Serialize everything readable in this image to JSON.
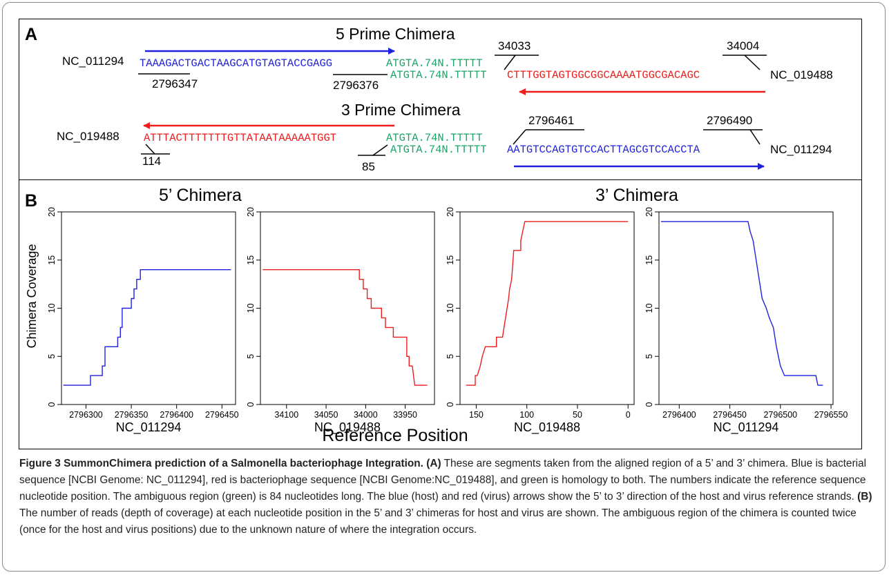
{
  "panel_a": {
    "letter": "A",
    "five_prime": {
      "title": "5 Prime Chimera",
      "host_label": "NC_011294",
      "host_seq": "TAAAGACTGACTAAGCATGTAGTACCGAGG",
      "homology_top": "ATGTA.74N.TTTTT",
      "homology_bottom": "ATGTA.74N.TTTTT",
      "virus_seq": "CTTTGGTAGTGGCGGCAAAATGGCGACAGC",
      "virus_label": "NC_019488",
      "pos_host_start": "2796347",
      "pos_host_end": "2796376",
      "pos_virus_start": "34033",
      "pos_virus_end": "34004"
    },
    "three_prime": {
      "title": "3 Prime Chimera",
      "virus_label": "NC_019488",
      "virus_seq": "ATTTACTTTTTTTGTTATAATAAAAATGGT",
      "homology_top": "ATGTA.74N.TTTTT",
      "homology_bottom": "ATGTA.74N.TTTTT",
      "host_seq": "AATGTCCAGTGTCCACTTAGCGTCCACCTA",
      "host_label": "NC_011294",
      "pos_virus_start": "114",
      "pos_virus_end": "85",
      "pos_host_start": "2796461",
      "pos_host_end": "2796490"
    }
  },
  "panel_b": {
    "letter": "B",
    "group_title_left": "5’ Chimera",
    "group_title_right": "3’ Chimera",
    "ylabel": "Chimera Coverage",
    "common_xlabel": "Reference Position"
  },
  "colors": {
    "host": "#1f1fe0",
    "virus": "#ee1c1c",
    "homology": "#1aa366"
  },
  "chart_data": [
    {
      "type": "line",
      "xlabel": "NC_011294",
      "ylabel": "Chimera Coverage",
      "xlim": [
        2796273,
        2796465
      ],
      "ylim": [
        0,
        20
      ],
      "xticks": [
        2796300,
        2796350,
        2796400,
        2796450
      ],
      "yticks": [
        0,
        5,
        10,
        15,
        20
      ],
      "series": [
        {
          "color": "#1f1fe0",
          "points": [
            [
              2796275,
              2
            ],
            [
              2796305,
              2
            ],
            [
              2796305,
              3
            ],
            [
              2796318,
              3
            ],
            [
              2796318,
              4
            ],
            [
              2796321,
              4
            ],
            [
              2796321,
              6
            ],
            [
              2796335,
              6
            ],
            [
              2796335,
              7
            ],
            [
              2796338,
              7
            ],
            [
              2796338,
              8
            ],
            [
              2796340,
              8
            ],
            [
              2796340,
              10
            ],
            [
              2796350,
              10
            ],
            [
              2796350,
              11
            ],
            [
              2796353,
              11
            ],
            [
              2796353,
              12
            ],
            [
              2796356,
              12
            ],
            [
              2796356,
              13
            ],
            [
              2796360,
              13
            ],
            [
              2796360,
              14
            ],
            [
              2796460,
              14
            ]
          ]
        }
      ]
    },
    {
      "type": "line",
      "xlabel": "NC_019488",
      "ylabel": "",
      "xlim": [
        34133,
        33913
      ],
      "ylim": [
        0,
        20
      ],
      "xticks": [
        34100,
        34050,
        34000,
        33950
      ],
      "yticks": [
        0,
        5,
        10,
        15,
        20
      ],
      "series": [
        {
          "color": "#ee1c1c",
          "points": [
            [
              34130,
              14
            ],
            [
              34008,
              14
            ],
            [
              34008,
              13
            ],
            [
              34003,
              13
            ],
            [
              34003,
              12
            ],
            [
              33998,
              12
            ],
            [
              33998,
              11
            ],
            [
              33993,
              11
            ],
            [
              33993,
              10
            ],
            [
              33980,
              10
            ],
            [
              33980,
              9
            ],
            [
              33975,
              9
            ],
            [
              33975,
              8
            ],
            [
              33965,
              8
            ],
            [
              33965,
              7
            ],
            [
              33948,
              7
            ],
            [
              33948,
              5
            ],
            [
              33945,
              5
            ],
            [
              33945,
              4
            ],
            [
              33941,
              4
            ],
            [
              33938,
              2
            ],
            [
              33922,
              2
            ]
          ]
        }
      ]
    },
    {
      "type": "line",
      "xlabel": "NC_019488",
      "ylabel": "",
      "xlim": [
        166,
        -6
      ],
      "ylim": [
        0,
        20
      ],
      "xticks": [
        150,
        100,
        50,
        0
      ],
      "yticks": [
        0,
        5,
        10,
        15,
        20
      ],
      "series": [
        {
          "color": "#ee1c1c",
          "points": [
            [
              160,
              2
            ],
            [
              151,
              2
            ],
            [
              151,
              3
            ],
            [
              149,
              3
            ],
            [
              146,
              4
            ],
            [
              144,
              5
            ],
            [
              141,
              6
            ],
            [
              130,
              6
            ],
            [
              130,
              7
            ],
            [
              124,
              7
            ],
            [
              121,
              9
            ],
            [
              118,
              11
            ],
            [
              117,
              12
            ],
            [
              115,
              13
            ],
            [
              113,
              16
            ],
            [
              106,
              16
            ],
            [
              106,
              17
            ],
            [
              104,
              18
            ],
            [
              102,
              19
            ],
            [
              0,
              19
            ]
          ]
        }
      ]
    },
    {
      "type": "line",
      "xlabel": "NC_011294",
      "ylabel": "",
      "xlim": [
        2796380,
        2796552
      ],
      "ylim": [
        0,
        20
      ],
      "xticks": [
        2796400,
        2796450,
        2796500,
        2796550
      ],
      "yticks": [
        0,
        5,
        10,
        15,
        20
      ],
      "series": [
        {
          "color": "#1f1fe0",
          "points": [
            [
              2796382,
              19
            ],
            [
              2796468,
              19
            ],
            [
              2796470,
              18
            ],
            [
              2796473,
              17
            ],
            [
              2796476,
              15
            ],
            [
              2796479,
              13
            ],
            [
              2796482,
              11
            ],
            [
              2796486,
              10
            ],
            [
              2796489,
              9
            ],
            [
              2796493,
              8
            ],
            [
              2796496,
              6
            ],
            [
              2796500,
              4
            ],
            [
              2796504,
              3
            ],
            [
              2796535,
              3
            ],
            [
              2796537,
              2
            ],
            [
              2796542,
              2
            ]
          ]
        }
      ]
    }
  ],
  "caption": {
    "fig_label": "Figure 3 SummonChimera prediction of a Salmonella bacteriophage Integration.",
    "a_label": "(A)",
    "a_text": "These are segments taken from the aligned region of a 5’ and 3’ chimera. Blue is bacterial sequence [NCBI Genome: NC_011294], red is bacteriophage sequence [NCBI Genome:NC_019488], and green is homology to both. The numbers indicate the reference sequence nucleotide position. The ambiguous region (green) is 84 nucleotides long. The blue (host) and red (virus) arrows show the 5’ to 3’ direction of the host and virus reference strands.",
    "b_label": "(B)",
    "b_text": "The number of reads (depth of coverage) at each nucleotide position in the 5’ and 3’ chimeras for host and virus are shown. The ambiguous region of the chimera is counted twice (once for the host and virus positions) due to the unknown nature of where the integration occurs."
  }
}
